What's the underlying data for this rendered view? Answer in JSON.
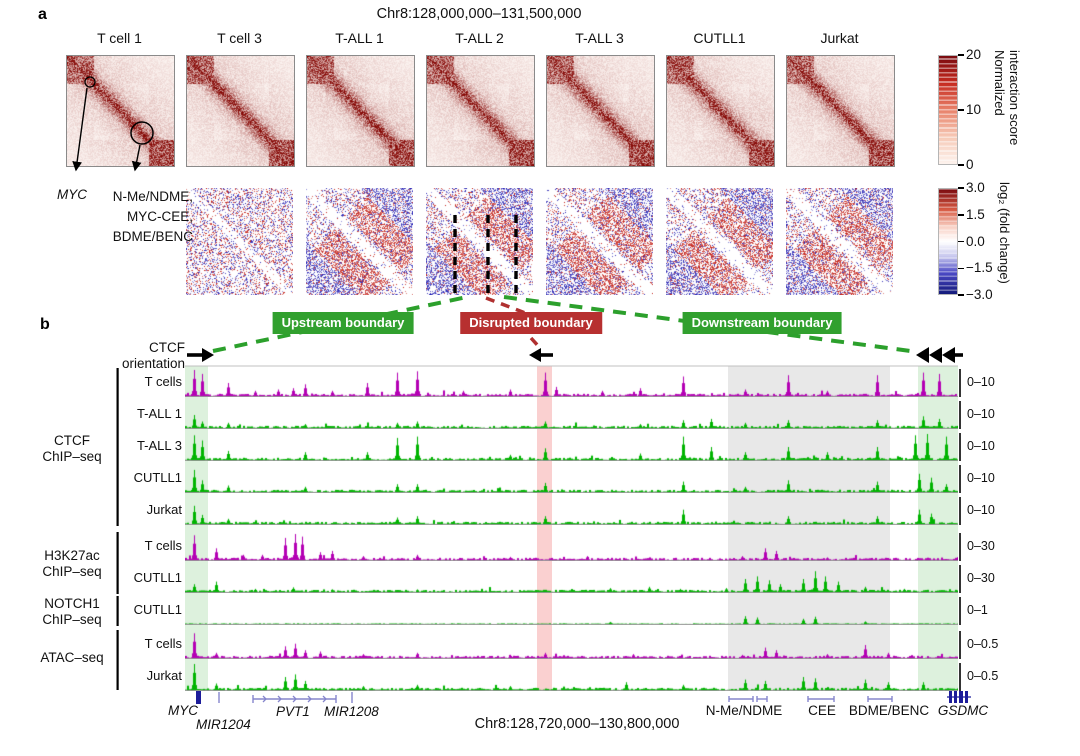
{
  "panelA": {
    "label": "a",
    "title": "Chr8:128,000,000–131,500,000",
    "samples": [
      "T cell 1",
      "T cell 3",
      "T-ALL 1",
      "T-ALL 2",
      "T-ALL 3",
      "CUTLL1",
      "Jurkat"
    ],
    "cb1": {
      "label": "Normalized\ninteraction score",
      "ticks": [
        "20",
        "10",
        "0"
      ]
    },
    "cb2": {
      "label": "log₂ (fold change)",
      "ticks": [
        "3.0",
        "1.5",
        "0.0",
        "−1.5",
        "−3.0"
      ]
    },
    "ann_myc": "MYC",
    "ann_enh": "N-Me/NDME,\nMYC-CEE,\nBDME/BENC"
  },
  "panelB": {
    "label": "b",
    "ctcf_orientation": "CTCF\norientation",
    "badges": [
      {
        "text": "Upstream boundary",
        "type": "green"
      },
      {
        "text": "Disrupted boundary",
        "type": "red"
      },
      {
        "text": "Downstream boundary",
        "type": "green"
      }
    ],
    "groups": [
      {
        "name": "CTCF\nChIP–seq",
        "tracks": [
          0,
          1,
          2,
          3,
          4
        ]
      },
      {
        "name": "H3K27ac\nChIP–seq",
        "tracks": [
          5,
          6
        ]
      },
      {
        "name": "NOTCH1\nChIP–seq",
        "tracks": [
          7
        ]
      },
      {
        "name": "ATAC–seq",
        "tracks": [
          8,
          9
        ]
      }
    ],
    "tracks": [
      {
        "sample": "T cells",
        "assay": "CTCF ChIP–seq",
        "scale": "0–10",
        "color": "magenta",
        "peaks": [
          [
            0.012,
            1.0
          ],
          [
            0.022,
            0.85
          ],
          [
            0.055,
            0.5
          ],
          [
            0.09,
            0.2
          ],
          [
            0.12,
            0.25
          ],
          [
            0.14,
            0.3
          ],
          [
            0.155,
            0.45
          ],
          [
            0.19,
            0.2
          ],
          [
            0.235,
            0.5
          ],
          [
            0.274,
            0.9
          ],
          [
            0.3,
            0.95
          ],
          [
            0.36,
            0.2
          ],
          [
            0.42,
            0.25
          ],
          [
            0.466,
            0.9
          ],
          [
            0.48,
            0.35
          ],
          [
            0.54,
            0.2
          ],
          [
            0.589,
            0.3
          ],
          [
            0.644,
            0.75
          ],
          [
            0.724,
            0.25
          ],
          [
            0.78,
            0.8
          ],
          [
            0.83,
            0.2
          ],
          [
            0.895,
            0.8
          ],
          [
            0.955,
            0.9
          ],
          [
            0.975,
            0.85
          ]
        ]
      },
      {
        "sample": "T-ALL 1",
        "assay": "CTCF ChIP–seq",
        "scale": "0–10",
        "color": "green",
        "peaks": [
          [
            0.012,
            0.5
          ],
          [
            0.022,
            0.25
          ],
          [
            0.055,
            0.2
          ],
          [
            0.155,
            0.15
          ],
          [
            0.274,
            0.2
          ],
          [
            0.3,
            0.25
          ],
          [
            0.466,
            0.25
          ],
          [
            0.589,
            0.15
          ],
          [
            0.644,
            0.3
          ],
          [
            0.68,
            0.35
          ],
          [
            0.724,
            0.2
          ],
          [
            0.78,
            0.3
          ],
          [
            0.895,
            0.3
          ],
          [
            0.955,
            0.45
          ],
          [
            0.975,
            0.35
          ]
        ]
      },
      {
        "sample": "T-ALL 3",
        "assay": "CTCF ChIP–seq",
        "scale": "0–10",
        "color": "green",
        "peaks": [
          [
            0.012,
            0.95
          ],
          [
            0.022,
            0.75
          ],
          [
            0.055,
            0.35
          ],
          [
            0.155,
            0.3
          ],
          [
            0.235,
            0.3
          ],
          [
            0.274,
            0.85
          ],
          [
            0.3,
            0.9
          ],
          [
            0.42,
            0.2
          ],
          [
            0.466,
            0.45
          ],
          [
            0.589,
            0.25
          ],
          [
            0.644,
            0.9
          ],
          [
            0.68,
            0.5
          ],
          [
            0.724,
            0.3
          ],
          [
            0.78,
            0.5
          ],
          [
            0.83,
            0.3
          ],
          [
            0.895,
            0.5
          ],
          [
            0.945,
            0.95
          ],
          [
            0.96,
            1.0
          ],
          [
            0.985,
            0.9
          ]
        ]
      },
      {
        "sample": "CUTLL1",
        "assay": "CTCF ChIP–seq",
        "scale": "0–10",
        "color": "green",
        "peaks": [
          [
            0.012,
            0.85
          ],
          [
            0.022,
            0.45
          ],
          [
            0.055,
            0.25
          ],
          [
            0.155,
            0.2
          ],
          [
            0.274,
            0.3
          ],
          [
            0.3,
            0.3
          ],
          [
            0.466,
            0.35
          ],
          [
            0.644,
            0.4
          ],
          [
            0.724,
            0.2
          ],
          [
            0.78,
            0.45
          ],
          [
            0.895,
            0.4
          ],
          [
            0.95,
            0.7
          ],
          [
            0.965,
            0.55
          ],
          [
            0.985,
            0.3
          ]
        ]
      },
      {
        "sample": "Jurkat",
        "assay": "CTCF ChIP–seq",
        "scale": "0–10",
        "color": "green",
        "peaks": [
          [
            0.012,
            0.7
          ],
          [
            0.022,
            0.35
          ],
          [
            0.055,
            0.2
          ],
          [
            0.274,
            0.25
          ],
          [
            0.3,
            0.3
          ],
          [
            0.466,
            0.3
          ],
          [
            0.644,
            0.55
          ],
          [
            0.78,
            0.3
          ],
          [
            0.895,
            0.3
          ],
          [
            0.95,
            0.55
          ],
          [
            0.965,
            0.4
          ]
        ]
      },
      {
        "sample": "T cells",
        "assay": "H3K27ac ChIP–seq",
        "scale": "0–30",
        "color": "magenta",
        "peaks": [
          [
            0.012,
            0.95
          ],
          [
            0.04,
            0.45
          ],
          [
            0.075,
            0.2
          ],
          [
            0.1,
            0.2
          ],
          [
            0.13,
            0.85
          ],
          [
            0.142,
            1.0
          ],
          [
            0.152,
            0.9
          ],
          [
            0.175,
            0.3
          ],
          [
            0.19,
            0.35
          ],
          [
            0.23,
            0.15
          ],
          [
            0.3,
            0.2
          ],
          [
            0.42,
            0.12
          ],
          [
            0.52,
            0.15
          ],
          [
            0.72,
            0.15
          ],
          [
            0.75,
            0.45
          ],
          [
            0.765,
            0.35
          ],
          [
            0.83,
            0.1
          ]
        ]
      },
      {
        "sample": "CUTLL1",
        "assay": "H3K27ac ChIP–seq",
        "scale": "0–30",
        "color": "green",
        "peaks": [
          [
            0.012,
            0.3
          ],
          [
            0.04,
            0.4
          ],
          [
            0.09,
            0.12
          ],
          [
            0.14,
            0.18
          ],
          [
            0.19,
            0.1
          ],
          [
            0.3,
            0.1
          ],
          [
            0.55,
            0.15
          ],
          [
            0.6,
            0.2
          ],
          [
            0.64,
            0.12
          ],
          [
            0.7,
            0.15
          ],
          [
            0.725,
            0.5
          ],
          [
            0.74,
            0.6
          ],
          [
            0.755,
            0.45
          ],
          [
            0.77,
            0.3
          ],
          [
            0.8,
            0.5
          ],
          [
            0.815,
            0.8
          ],
          [
            0.828,
            0.6
          ],
          [
            0.845,
            0.4
          ],
          [
            0.88,
            0.2
          ],
          [
            0.93,
            0.12
          ]
        ]
      },
      {
        "sample": "CUTLL1",
        "assay": "NOTCH1 ChIP–seq",
        "scale": "0–1",
        "color": "green",
        "flat": true,
        "peaks": [
          [
            0.55,
            0.08
          ],
          [
            0.725,
            0.3
          ],
          [
            0.74,
            0.25
          ],
          [
            0.8,
            0.2
          ],
          [
            0.815,
            0.28
          ],
          [
            0.88,
            0.1
          ]
        ]
      },
      {
        "sample": "T cells",
        "assay": "ATAC–seq",
        "scale": "0–0.5",
        "color": "magenta",
        "peaks": [
          [
            0.012,
            0.95
          ],
          [
            0.04,
            0.2
          ],
          [
            0.13,
            0.45
          ],
          [
            0.142,
            0.55
          ],
          [
            0.155,
            0.3
          ],
          [
            0.175,
            0.25
          ],
          [
            0.23,
            0.15
          ],
          [
            0.3,
            0.2
          ],
          [
            0.42,
            0.12
          ],
          [
            0.466,
            0.2
          ],
          [
            0.58,
            0.15
          ],
          [
            0.72,
            0.12
          ],
          [
            0.75,
            0.4
          ],
          [
            0.765,
            0.3
          ],
          [
            0.83,
            0.15
          ],
          [
            0.88,
            0.5
          ],
          [
            0.91,
            0.2
          ]
        ]
      },
      {
        "sample": "Jurkat",
        "assay": "ATAC–seq",
        "scale": "0–0.5",
        "color": "green",
        "peaks": [
          [
            0.012,
            1.0
          ],
          [
            0.04,
            0.25
          ],
          [
            0.13,
            0.5
          ],
          [
            0.142,
            0.6
          ],
          [
            0.155,
            0.35
          ],
          [
            0.23,
            0.15
          ],
          [
            0.3,
            0.2
          ],
          [
            0.42,
            0.15
          ],
          [
            0.57,
            0.3
          ],
          [
            0.644,
            0.2
          ],
          [
            0.725,
            0.4
          ],
          [
            0.75,
            0.35
          ],
          [
            0.8,
            0.5
          ],
          [
            0.815,
            0.45
          ],
          [
            0.88,
            0.4
          ],
          [
            0.91,
            0.3
          ],
          [
            0.955,
            0.3
          ]
        ]
      }
    ],
    "genes": {
      "myc": "MYC",
      "mir1204": "MIR1204",
      "pvt1": "PVT1",
      "mir1208": "MIR1208",
      "nme": "N-Me/NDME",
      "cee": "CEE",
      "bdme": "BDME/BENC",
      "gsdmc": "GSDMC"
    },
    "region_label": "Chr8:128,720,000–130,800,000"
  },
  "colors": {
    "magenta": "#b400b4",
    "green": "#00b400",
    "badge_green": "#31a02e",
    "badge_red": "#b73030",
    "hic_red": "#8b0000",
    "diff_red": "#c32016",
    "diff_blue": "#2823b4"
  }
}
